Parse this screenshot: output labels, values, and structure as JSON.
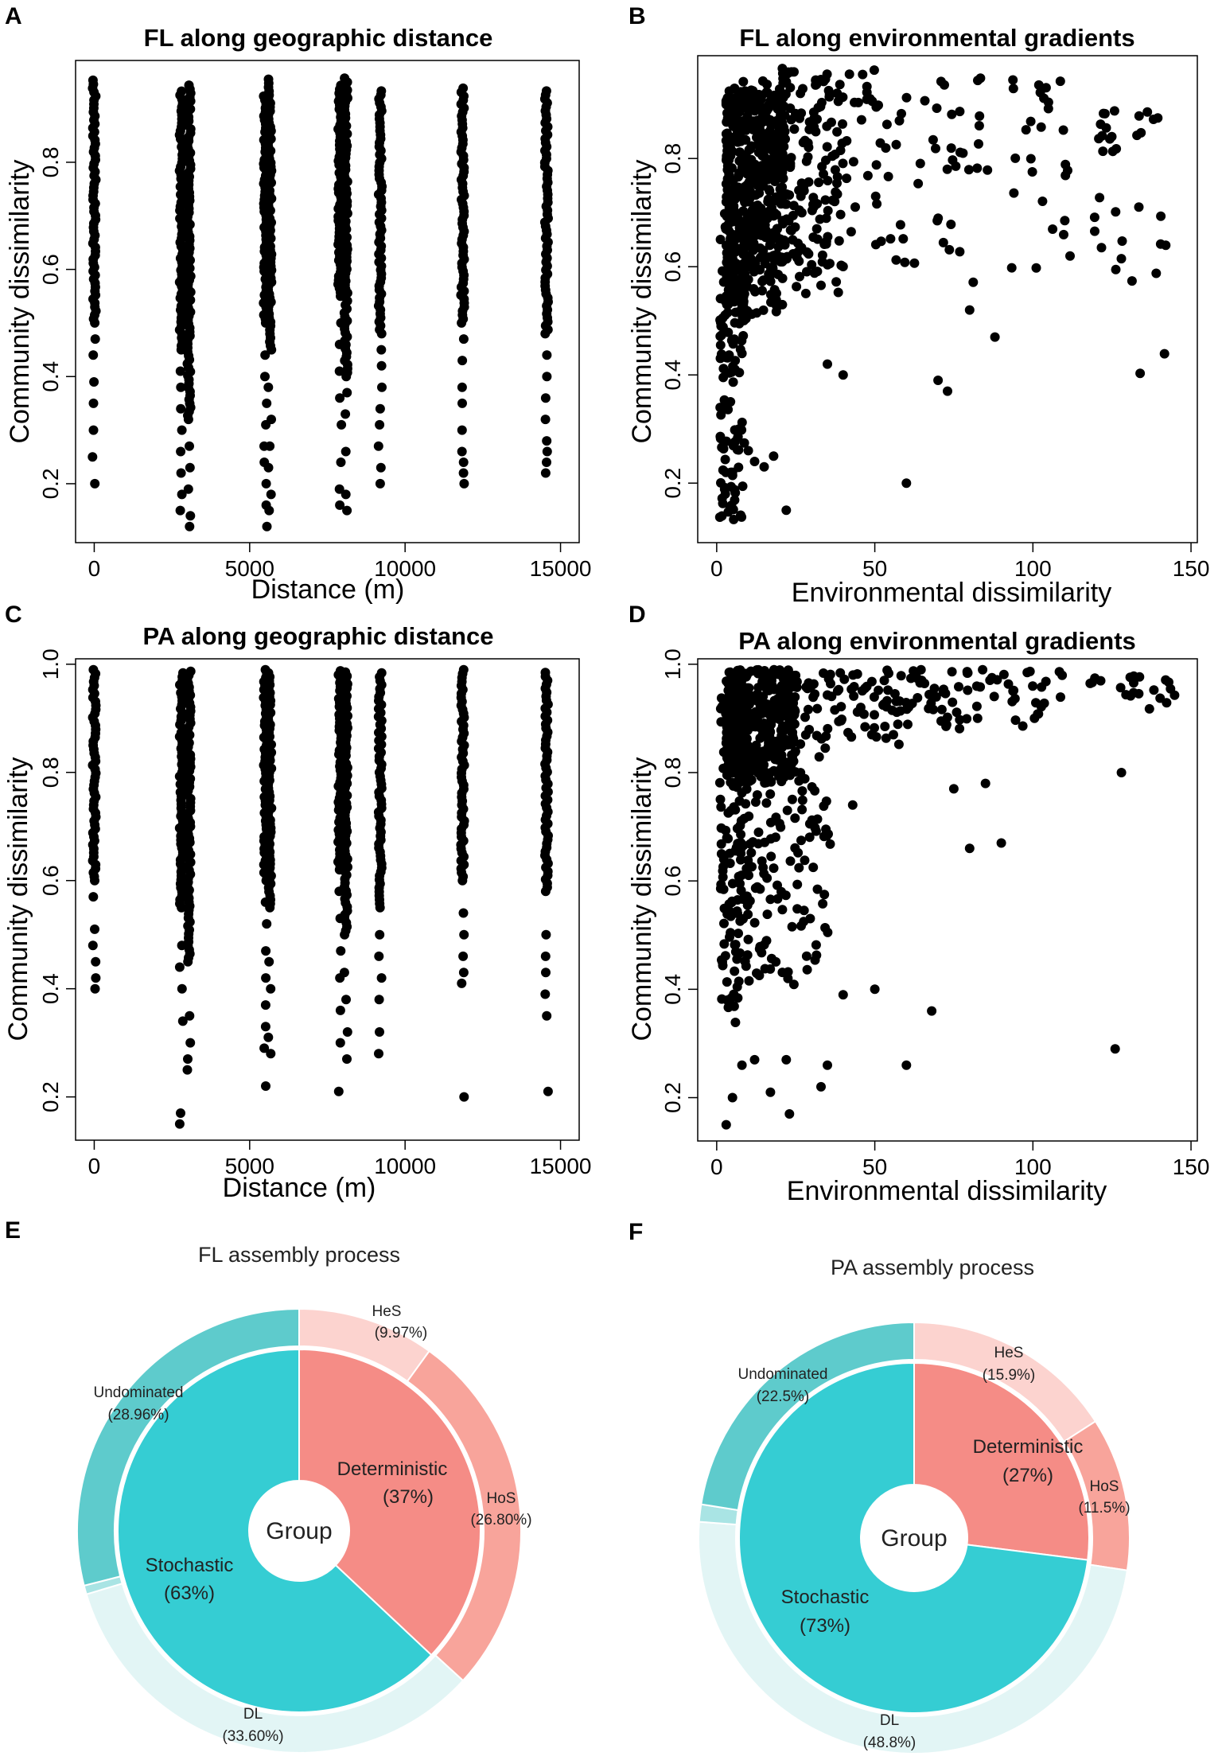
{
  "colors": {
    "deterministic": "#f58c86",
    "stochastic": "#35cdd3",
    "HeS": "#fcd3cf",
    "HoS": "#f8a49b",
    "Undominated": "#5ecbcc",
    "DL": "#e2f5f5",
    "small": "#a9e4e4",
    "points": "#000000"
  },
  "chart_data": [
    {
      "panel": "A",
      "type": "scatter",
      "title": "FL along geographic distance",
      "xlabel": "Distance (m)",
      "ylabel": "Community dissimilarity",
      "xlim": [
        -600,
        15600
      ],
      "ylim": [
        0.09,
        0.99
      ],
      "xticks": [
        0,
        5000,
        10000,
        15000
      ],
      "yticks": [
        0.2,
        0.4,
        0.6,
        0.8
      ],
      "columns": [
        {
          "x": 0,
          "ymin": 0.5,
          "ymax": 0.96,
          "sparse": [
            0.2,
            0.25,
            0.3,
            0.35,
            0.39,
            0.44,
            0.47
          ]
        },
        {
          "x": 2800,
          "ymin": 0.45,
          "ymax": 0.94,
          "sparse": [
            0.15,
            0.18,
            0.22,
            0.26,
            0.3,
            0.34,
            0.38,
            0.41
          ]
        },
        {
          "x": 3050,
          "ymin": 0.32,
          "ymax": 0.95,
          "sparse": [
            0.12,
            0.14,
            0.19,
            0.23,
            0.27
          ]
        },
        {
          "x": 5500,
          "ymin": 0.5,
          "ymax": 0.93,
          "sparse": [
            0.12,
            0.16,
            0.2,
            0.24,
            0.27,
            0.31,
            0.35,
            0.4,
            0.44
          ]
        },
        {
          "x": 5650,
          "ymin": 0.45,
          "ymax": 0.96,
          "sparse": [
            0.15,
            0.18,
            0.23,
            0.27,
            0.32,
            0.38
          ]
        },
        {
          "x": 7900,
          "ymin": 0.55,
          "ymax": 0.95,
          "sparse": [
            0.16,
            0.19,
            0.24,
            0.31,
            0.36,
            0.41,
            0.46,
            0.5
          ]
        },
        {
          "x": 8100,
          "ymin": 0.4,
          "ymax": 0.96,
          "sparse": [
            0.15,
            0.18,
            0.26,
            0.33,
            0.37
          ]
        },
        {
          "x": 9200,
          "ymin": 0.48,
          "ymax": 0.94,
          "sparse": [
            0.2,
            0.23,
            0.27,
            0.31,
            0.34,
            0.38,
            0.42,
            0.45
          ]
        },
        {
          "x": 11850,
          "ymin": 0.5,
          "ymax": 0.94,
          "sparse": [
            0.2,
            0.22,
            0.24,
            0.26,
            0.3,
            0.35,
            0.38,
            0.43,
            0.47
          ]
        },
        {
          "x": 14550,
          "ymin": 0.48,
          "ymax": 0.94,
          "sparse": [
            0.22,
            0.24,
            0.26,
            0.28,
            0.32,
            0.36,
            0.4,
            0.44
          ]
        }
      ]
    },
    {
      "panel": "B",
      "type": "scatter",
      "title": "FL along environmental gradients",
      "xlabel": "Environmental dissimilarity",
      "ylabel": "Community dissimilarity",
      "xlim": [
        -6,
        152
      ],
      "ylim": [
        0.09,
        0.99
      ],
      "xticks": [
        0,
        50,
        100,
        150
      ],
      "yticks": [
        0.2,
        0.4,
        0.6,
        0.8
      ],
      "clusters": [
        {
          "n": 130,
          "x": [
            1,
            9
          ],
          "y": [
            0.12,
            0.7
          ]
        },
        {
          "n": 420,
          "x": [
            3,
            22
          ],
          "y": [
            0.5,
            0.93
          ]
        },
        {
          "n": 180,
          "x": [
            8,
            40
          ],
          "y": [
            0.55,
            0.95
          ]
        },
        {
          "n": 80,
          "x": [
            20,
            60
          ],
          "y": [
            0.6,
            0.97
          ]
        },
        {
          "n": 60,
          "x": [
            60,
            112
          ],
          "y": [
            0.55,
            0.95
          ]
        },
        {
          "n": 18,
          "x": [
            120,
            146
          ],
          "y": [
            0.8,
            0.89
          ]
        },
        {
          "n": 16,
          "x": [
            118,
            145
          ],
          "y": [
            0.38,
            0.75
          ]
        }
      ],
      "points": [
        [
          60,
          0.2
        ],
        [
          22,
          0.15
        ],
        [
          35,
          0.42
        ],
        [
          40,
          0.4
        ],
        [
          70,
          0.39
        ],
        [
          73,
          0.37
        ],
        [
          80,
          0.52
        ],
        [
          88,
          0.47
        ],
        [
          5,
          0.22
        ],
        [
          7,
          0.3
        ],
        [
          10,
          0.26
        ],
        [
          12,
          0.24
        ],
        [
          15,
          0.23
        ],
        [
          18,
          0.25
        ]
      ]
    },
    {
      "panel": "C",
      "type": "scatter",
      "title": "PA along geographic distance",
      "xlabel": "Distance (m)",
      "ylabel": "Community dissimilarity",
      "xlim": [
        -600,
        15600
      ],
      "ylim": [
        0.12,
        1.01
      ],
      "xticks": [
        0,
        5000,
        10000,
        15000
      ],
      "yticks": [
        0.2,
        0.4,
        0.6,
        0.8,
        1.0
      ],
      "columns": [
        {
          "x": 0,
          "ymin": 0.6,
          "ymax": 0.99,
          "sparse": [
            0.4,
            0.42,
            0.45,
            0.48,
            0.51,
            0.57
          ]
        },
        {
          "x": 2800,
          "ymin": 0.55,
          "ymax": 0.99,
          "sparse": [
            0.15,
            0.17,
            0.34,
            0.4,
            0.44,
            0.48
          ]
        },
        {
          "x": 3050,
          "ymin": 0.45,
          "ymax": 0.99,
          "sparse": [
            0.25,
            0.27,
            0.3,
            0.35
          ]
        },
        {
          "x": 5500,
          "ymin": 0.6,
          "ymax": 0.99,
          "sparse": [
            0.22,
            0.29,
            0.33,
            0.37,
            0.42,
            0.47,
            0.52,
            0.56
          ]
        },
        {
          "x": 5650,
          "ymin": 0.55,
          "ymax": 0.99,
          "sparse": [
            0.28,
            0.31,
            0.4,
            0.45
          ]
        },
        {
          "x": 7900,
          "ymin": 0.62,
          "ymax": 0.99,
          "sparse": [
            0.21,
            0.3,
            0.36,
            0.42,
            0.47,
            0.53,
            0.58
          ]
        },
        {
          "x": 8100,
          "ymin": 0.5,
          "ymax": 0.99,
          "sparse": [
            0.27,
            0.32,
            0.38,
            0.43
          ]
        },
        {
          "x": 9200,
          "ymin": 0.55,
          "ymax": 0.99,
          "sparse": [
            0.28,
            0.32,
            0.38,
            0.42,
            0.46,
            0.5
          ]
        },
        {
          "x": 11850,
          "ymin": 0.6,
          "ymax": 0.99,
          "sparse": [
            0.2,
            0.41,
            0.43,
            0.46,
            0.5,
            0.54
          ]
        },
        {
          "x": 14550,
          "ymin": 0.58,
          "ymax": 0.99,
          "sparse": [
            0.21,
            0.35,
            0.39,
            0.43,
            0.46,
            0.5
          ]
        }
      ]
    },
    {
      "panel": "D",
      "type": "scatter",
      "title": "PA along environmental gradients",
      "xlabel": "Environmental dissimilarity",
      "ylabel": "Community dissimilarity",
      "xlim": [
        -6,
        152
      ],
      "ylim": [
        0.12,
        1.01
      ],
      "xticks": [
        0,
        50,
        100,
        150
      ],
      "yticks": [
        0.2,
        0.4,
        0.6,
        0.8,
        1.0
      ],
      "clusters": [
        {
          "n": 120,
          "x": [
            1,
            10
          ],
          "y": [
            0.33,
            0.95
          ]
        },
        {
          "n": 400,
          "x": [
            3,
            25
          ],
          "y": [
            0.78,
            0.99
          ]
        },
        {
          "n": 150,
          "x": [
            6,
            36
          ],
          "y": [
            0.4,
            0.85
          ]
        },
        {
          "n": 90,
          "x": [
            22,
            60
          ],
          "y": [
            0.85,
            0.99
          ]
        },
        {
          "n": 70,
          "x": [
            60,
            110
          ],
          "y": [
            0.88,
            0.99
          ]
        },
        {
          "n": 22,
          "x": [
            118,
            146
          ],
          "y": [
            0.91,
            0.98
          ]
        }
      ],
      "points": [
        [
          3,
          0.15
        ],
        [
          23,
          0.17
        ],
        [
          5,
          0.2
        ],
        [
          8,
          0.26
        ],
        [
          12,
          0.27
        ],
        [
          17,
          0.21
        ],
        [
          22,
          0.27
        ],
        [
          33,
          0.22
        ],
        [
          35,
          0.26
        ],
        [
          40,
          0.39
        ],
        [
          50,
          0.4
        ],
        [
          60,
          0.26
        ],
        [
          68,
          0.36
        ],
        [
          80,
          0.66
        ],
        [
          90,
          0.67
        ],
        [
          128,
          0.8
        ],
        [
          126,
          0.29
        ],
        [
          75,
          0.77
        ],
        [
          85,
          0.78
        ],
        [
          43,
          0.74
        ]
      ]
    },
    {
      "panel": "E",
      "type": "pie",
      "title": "FL assembly process",
      "center_label": "Group",
      "inner": [
        {
          "name": "Deterministic",
          "pct_label": "(37%)",
          "value": 37
        },
        {
          "name": "Stochastic",
          "pct_label": "(63%)",
          "value": 63
        }
      ],
      "outer": [
        {
          "name": "HeS",
          "pct_label": "(9.97%)",
          "value": 9.97
        },
        {
          "name": "HoS",
          "pct_label": "(26.80%)",
          "value": 26.8
        },
        {
          "name": "DL",
          "pct_label": "(33.60%)",
          "value": 33.6
        },
        {
          "name": "",
          "pct_label": "",
          "value": 0.64
        },
        {
          "name": "Undominated",
          "pct_label": "(28.96%)",
          "value": 28.96
        }
      ]
    },
    {
      "panel": "F",
      "type": "pie",
      "title": "PA assembly process",
      "center_label": "Group",
      "inner": [
        {
          "name": "Deterministic",
          "pct_label": "(27%)",
          "value": 27
        },
        {
          "name": "Stochastic",
          "pct_label": "(73%)",
          "value": 73
        }
      ],
      "outer": [
        {
          "name": "HeS",
          "pct_label": "(15.9%)",
          "value": 15.9
        },
        {
          "name": "HoS",
          "pct_label": "(11.5%)",
          "value": 11.5
        },
        {
          "name": "DL",
          "pct_label": "(48.8%)",
          "value": 48.8
        },
        {
          "name": "",
          "pct_label": "",
          "value": 1.3
        },
        {
          "name": "Undominated",
          "pct_label": "(22.5%)",
          "value": 22.5
        }
      ]
    }
  ]
}
